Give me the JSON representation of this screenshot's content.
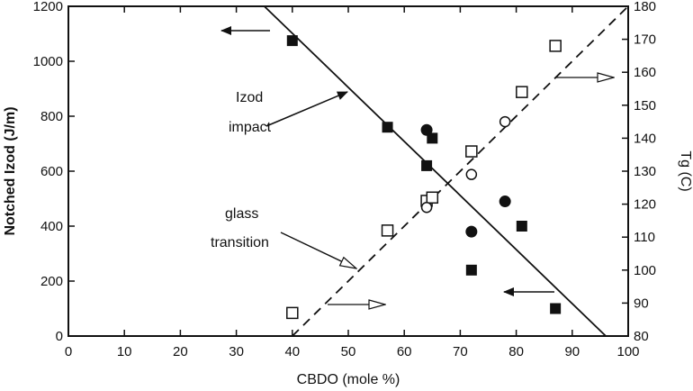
{
  "chart_data": {
    "type": "scatter",
    "xlabel": "CBDO (mole %)",
    "ylabel_left": "Notched Izod (J/m)",
    "ylabel_right": "Tg (C)",
    "xlim": [
      0,
      100
    ],
    "ylim_left": [
      0,
      1200
    ],
    "ylim_right": [
      80,
      180
    ],
    "x_ticks": [
      0,
      10,
      20,
      30,
      40,
      50,
      60,
      70,
      80,
      90,
      100
    ],
    "y_left_ticks": [
      0,
      200,
      400,
      600,
      800,
      1000,
      1200
    ],
    "y_right_ticks": [
      80,
      90,
      100,
      110,
      120,
      130,
      140,
      150,
      160,
      170,
      180
    ],
    "grid": false,
    "series": [
      {
        "marker": "filled-square",
        "axis": "left",
        "points": [
          [
            40,
            1075
          ],
          [
            57,
            760
          ],
          [
            64,
            620
          ],
          [
            65,
            720
          ],
          [
            72,
            240
          ],
          [
            81,
            400
          ],
          [
            87,
            100
          ]
        ]
      },
      {
        "marker": "filled-circle",
        "axis": "left",
        "points": [
          [
            64,
            750
          ],
          [
            72,
            380
          ],
          [
            78,
            490
          ]
        ]
      },
      {
        "marker": "open-square",
        "axis": "right",
        "points": [
          [
            40,
            87
          ],
          [
            57,
            112
          ],
          [
            64,
            121
          ],
          [
            65,
            122
          ],
          [
            72,
            136
          ],
          [
            81,
            154
          ],
          [
            87,
            168
          ]
        ]
      },
      {
        "marker": "open-circle",
        "axis": "right",
        "points": [
          [
            64,
            119
          ],
          [
            72,
            129
          ],
          [
            78,
            145
          ]
        ]
      }
    ],
    "trend_lines": [
      {
        "style": "solid",
        "axis": "left",
        "from": [
          35,
          1200
        ],
        "to": [
          96,
          0
        ]
      },
      {
        "style": "dashed",
        "axis": "right",
        "from": [
          40,
          80
        ],
        "to": [
          100,
          180
        ]
      }
    ],
    "annotations": {
      "izod": {
        "line1": "Izod",
        "line2": "impact"
      },
      "glass": {
        "line1": "glass",
        "line2": "transition"
      }
    }
  }
}
